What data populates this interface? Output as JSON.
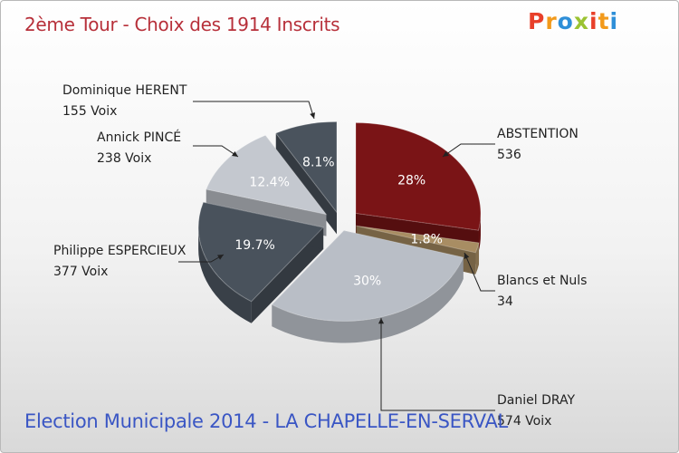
{
  "header": {
    "title": "2ème Tour - Choix des 1914 Inscrits"
  },
  "logo": {
    "text": "Proxiti",
    "colors": [
      "#e8402a",
      "#f29a1b",
      "#2e8fd8",
      "#9bc332",
      "#e8402a",
      "#f29a1b",
      "#2e8fd8"
    ]
  },
  "footer": {
    "subtitle": "Election Municipale 2014 - LA CHAPELLE-EN-SERVAL"
  },
  "chart_data": {
    "type": "pie",
    "title": "2ème Tour - Choix des 1914 Inscrits",
    "slices": [
      {
        "name": "ABSTENTION",
        "value_label": "536",
        "value": 536,
        "percent_label": "28%",
        "color": "#7a1416"
      },
      {
        "name": "Blancs et Nuls",
        "value_label": "34",
        "value": 34,
        "percent_label": "1.8%",
        "color": "#a88d63"
      },
      {
        "name": "Daniel DRAY",
        "value_label": "574 Voix",
        "value": 574,
        "percent_label": "30%",
        "color": "#b9bec6"
      },
      {
        "name": "Philippe ESPERCIEUX",
        "value_label": "377 Voix",
        "value": 377,
        "percent_label": "19.7%",
        "color": "#49525c"
      },
      {
        "name": "Annick PINCÉ",
        "value_label": "238 Voix",
        "value": 238,
        "percent_label": "12.4%",
        "color": "#c4c8cf"
      },
      {
        "name": "Dominique HERENT",
        "value_label": "155 Voix",
        "value": 155,
        "percent_label": "8.1%",
        "color": "#4a535d"
      }
    ]
  }
}
